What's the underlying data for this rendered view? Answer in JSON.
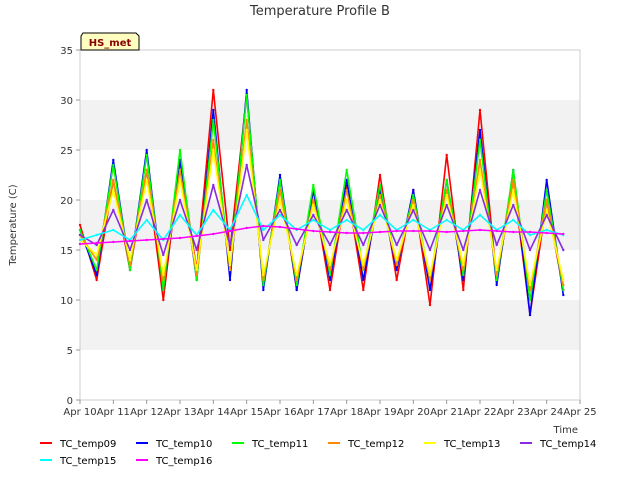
{
  "chart_data": {
    "type": "line",
    "title": "Temperature Profile B",
    "xlabel": "Time",
    "ylabel": "Temperature (C)",
    "badge": "HS_met",
    "x_ticks": [
      "Apr 10",
      "Apr 11",
      "Apr 12",
      "Apr 13",
      "Apr 14",
      "Apr 15",
      "Apr 16",
      "Apr 17",
      "Apr 18",
      "Apr 19",
      "Apr 20",
      "Apr 21",
      "Apr 22",
      "Apr 23",
      "Apr 24",
      "Apr 25"
    ],
    "y_ticks": [
      "0",
      "5",
      "10",
      "15",
      "20",
      "25",
      "30",
      "35"
    ],
    "xlim": [
      "Apr 10",
      "Apr 25"
    ],
    "ylim": [
      0,
      35
    ],
    "grid": "horizontal bands",
    "legend_position": "bottom",
    "x": [
      "Apr 10 00:00",
      "Apr 10 12:00",
      "Apr 11 00:00",
      "Apr 11 12:00",
      "Apr 12 00:00",
      "Apr 12 12:00",
      "Apr 13 00:00",
      "Apr 13 12:00",
      "Apr 14 00:00",
      "Apr 14 12:00",
      "Apr 15 00:00",
      "Apr 15 12:00",
      "Apr 16 00:00",
      "Apr 16 12:00",
      "Apr 17 00:00",
      "Apr 17 12:00",
      "Apr 18 00:00",
      "Apr 18 12:00",
      "Apr 19 00:00",
      "Apr 19 12:00",
      "Apr 20 00:00",
      "Apr 20 12:00",
      "Apr 21 00:00",
      "Apr 21 12:00",
      "Apr 22 00:00",
      "Apr 22 12:00",
      "Apr 23 00:00",
      "Apr 23 12:00",
      "Apr 24 00:00",
      "Apr 24 12:00"
    ],
    "series": [
      {
        "name": "TC_temp09",
        "color": "#ff0000",
        "values": [
          17.5,
          12.0,
          22.0,
          13.0,
          23.0,
          10.0,
          24.0,
          13.0,
          31.0,
          15.0,
          30.5,
          11.5,
          22.0,
          11.0,
          21.0,
          11.0,
          21.5,
          11.0,
          22.5,
          12.0,
          21.0,
          9.5,
          24.5,
          11.0,
          29.0,
          12.0,
          22.0,
          8.5,
          20.0,
          11.0
        ]
      },
      {
        "name": "TC_temp10",
        "color": "#0000ff",
        "values": [
          17.0,
          12.5,
          24.0,
          13.0,
          25.0,
          11.0,
          24.0,
          12.0,
          29.0,
          12.0,
          31.0,
          11.0,
          22.5,
          11.0,
          21.0,
          12.0,
          22.0,
          12.0,
          21.0,
          13.0,
          21.0,
          11.0,
          22.0,
          12.0,
          27.0,
          11.5,
          23.0,
          8.5,
          22.0,
          10.5
        ]
      },
      {
        "name": "TC_temp11",
        "color": "#00ff00",
        "values": [
          17.0,
          13.0,
          23.5,
          13.0,
          24.5,
          11.0,
          25.0,
          12.0,
          28.0,
          13.0,
          30.5,
          11.5,
          22.0,
          11.5,
          21.5,
          12.5,
          23.0,
          13.0,
          21.5,
          13.5,
          20.5,
          12.0,
          22.0,
          12.5,
          26.0,
          12.0,
          23.0,
          10.0,
          21.0,
          11.0
        ]
      },
      {
        "name": "TC_temp12",
        "color": "#ff8c00",
        "values": [
          16.5,
          14.0,
          22.0,
          13.5,
          23.0,
          12.0,
          23.0,
          12.5,
          26.0,
          13.0,
          28.0,
          12.0,
          21.0,
          12.0,
          20.0,
          13.0,
          21.0,
          13.0,
          20.5,
          13.5,
          20.0,
          12.0,
          21.0,
          13.0,
          24.0,
          12.5,
          22.0,
          11.0,
          20.0,
          11.5
        ]
      },
      {
        "name": "TC_temp13",
        "color": "#ffff00",
        "values": [
          16.0,
          14.5,
          21.0,
          14.0,
          22.0,
          12.5,
          22.0,
          13.0,
          25.0,
          13.5,
          27.0,
          12.5,
          20.0,
          12.5,
          19.5,
          13.5,
          20.0,
          13.5,
          20.0,
          14.0,
          19.5,
          12.5,
          20.5,
          13.5,
          23.0,
          13.0,
          21.0,
          11.5,
          19.0,
          12.0
        ]
      },
      {
        "name": "TC_temp14",
        "color": "#8a2be2",
        "values": [
          16.5,
          15.5,
          19.0,
          15.0,
          20.0,
          14.5,
          20.0,
          15.0,
          21.5,
          15.5,
          23.5,
          16.0,
          19.0,
          15.5,
          18.5,
          15.5,
          19.0,
          15.5,
          19.5,
          15.5,
          19.0,
          15.0,
          19.5,
          15.0,
          21.0,
          15.5,
          19.5,
          15.0,
          18.5,
          15.0
        ]
      },
      {
        "name": "TC_temp15",
        "color": "#00ffff",
        "values": [
          16.0,
          16.5,
          17.0,
          16.0,
          18.0,
          16.0,
          18.5,
          16.5,
          19.0,
          17.0,
          20.5,
          17.0,
          18.5,
          17.0,
          18.0,
          17.0,
          18.0,
          17.0,
          18.5,
          17.0,
          18.0,
          17.0,
          18.0,
          17.0,
          18.5,
          17.0,
          18.0,
          16.5,
          17.0,
          16.5
        ]
      },
      {
        "name": "TC_temp16",
        "color": "#ff00ff",
        "values": [
          15.6,
          15.7,
          15.8,
          15.9,
          16.0,
          16.1,
          16.2,
          16.4,
          16.6,
          16.9,
          17.2,
          17.4,
          17.3,
          17.1,
          16.9,
          16.8,
          16.7,
          16.7,
          16.8,
          16.9,
          16.9,
          16.9,
          16.8,
          16.9,
          17.0,
          16.9,
          16.8,
          16.8,
          16.7,
          16.6
        ]
      }
    ]
  }
}
